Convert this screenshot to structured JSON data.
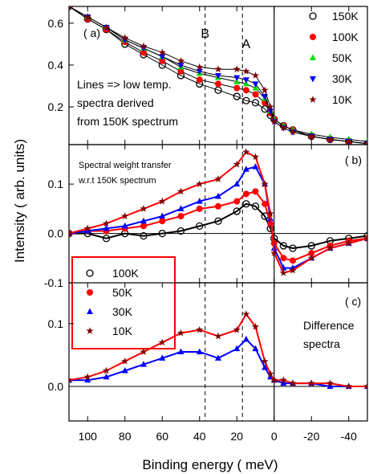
{
  "chart_data": {
    "type": "scatter",
    "xlabel": "Binding energy  ( meV)",
    "ylabel": "Intensity  ( arb. units)",
    "xlim": [
      110,
      -50
    ],
    "xticks": [
      100,
      80,
      60,
      40,
      20,
      0,
      -20,
      -40
    ],
    "reference_lines_x": [
      37,
      17,
      0
    ],
    "panels": [
      {
        "id": "a",
        "panel_label": "( a)",
        "ylim": [
          0.02,
          0.68
        ],
        "yticks": [
          0.2,
          0.4,
          0.6
        ],
        "peak_labels": [
          {
            "text": "B",
            "x": 37,
            "y": 0.53
          },
          {
            "text": "A",
            "x": 15,
            "y": 0.48
          }
        ],
        "annotation_lines": [
          "Lines => low temp.",
          "spectra derived",
          "from 150K spectrum"
        ],
        "legend_position": "top-right",
        "series": [
          {
            "name": "150K",
            "marker": "circle-open",
            "color": "#000000",
            "x": [
              110,
              100,
              90,
              80,
              70,
              60,
              50,
              40,
              30,
              20,
              15,
              10,
              5,
              2,
              0,
              -5,
              -10,
              -20,
              -30,
              -40,
              -50
            ],
            "y": [
              0.68,
              0.62,
              0.57,
              0.5,
              0.45,
              0.4,
              0.35,
              0.31,
              0.28,
              0.25,
              0.23,
              0.22,
              0.19,
              0.16,
              0.14,
              0.11,
              0.09,
              0.06,
              0.045,
              0.035,
              0.025
            ]
          },
          {
            "name": "100K",
            "marker": "circle-filled",
            "color": "#ff0000",
            "x": [
              110,
              100,
              90,
              80,
              70,
              60,
              50,
              40,
              30,
              20,
              15,
              10,
              5,
              2,
              0,
              -5,
              -10,
              -20,
              -30,
              -40,
              -50
            ],
            "y": [
              0.68,
              0.62,
              0.57,
              0.51,
              0.46,
              0.42,
              0.37,
              0.33,
              0.31,
              0.29,
              0.28,
              0.26,
              0.22,
              0.17,
              0.14,
              0.11,
              0.09,
              0.06,
              0.045,
              0.035,
              0.025
            ]
          },
          {
            "name": "50K",
            "marker": "triangle-up",
            "color": "#00dd00",
            "x": [
              110,
              100,
              90,
              80,
              70,
              60,
              50,
              40,
              30,
              20,
              15,
              10,
              5,
              2,
              0,
              -5,
              -10,
              -20,
              -30,
              -40,
              -50
            ],
            "y": [
              0.68,
              0.63,
              0.58,
              0.52,
              0.48,
              0.44,
              0.39,
              0.36,
              0.34,
              0.32,
              0.31,
              0.29,
              0.24,
              0.18,
              0.14,
              0.11,
              0.09,
              0.07,
              0.055,
              0.045,
              0.035
            ]
          },
          {
            "name": "30K",
            "marker": "triangle-down",
            "color": "#0000ff",
            "x": [
              110,
              100,
              90,
              80,
              70,
              60,
              50,
              40,
              30,
              20,
              15,
              10,
              5,
              2,
              0,
              -5,
              -10,
              -20,
              -30,
              -40,
              -50
            ],
            "y": [
              0.68,
              0.63,
              0.58,
              0.52,
              0.48,
              0.44,
              0.4,
              0.37,
              0.35,
              0.34,
              0.33,
              0.31,
              0.25,
              0.18,
              0.13,
              0.1,
              0.08,
              0.06,
              0.045,
              0.035,
              0.025
            ]
          },
          {
            "name": "10K",
            "marker": "star",
            "color": "#800000",
            "x": [
              110,
              100,
              90,
              80,
              70,
              60,
              50,
              40,
              30,
              20,
              15,
              10,
              5,
              2,
              0,
              -5,
              -10,
              -20,
              -30,
              -40,
              -50
            ],
            "y": [
              0.68,
              0.63,
              0.58,
              0.53,
              0.49,
              0.46,
              0.42,
              0.39,
              0.38,
              0.38,
              0.37,
              0.35,
              0.28,
              0.2,
              0.13,
              0.1,
              0.08,
              0.06,
              0.045,
              0.035,
              0.025
            ]
          }
        ]
      },
      {
        "id": "b",
        "panel_label": "( b)",
        "ylim": [
          -0.1,
          0.18
        ],
        "yticks": [
          -0.1,
          0.0,
          0.1
        ],
        "ytick_labels": [
          "-0.1",
          "0.0",
          "0.1"
        ],
        "annotation_lines": [
          "Spectral weight transfer",
          "w.r.t 150K spectrum"
        ],
        "legend_position": "bottom-left",
        "series": [
          {
            "name": "100K",
            "marker": "circle-open",
            "color": "#000000",
            "x": [
              110,
              100,
              90,
              80,
              70,
              60,
              50,
              40,
              30,
              20,
              15,
              10,
              5,
              2,
              0,
              -5,
              -10,
              -20,
              -30,
              -40,
              -50
            ],
            "y": [
              0.0,
              0.0,
              -0.01,
              0.0,
              -0.005,
              0.0,
              0.005,
              0.015,
              0.025,
              0.045,
              0.06,
              0.055,
              0.035,
              0.01,
              -0.01,
              -0.025,
              -0.03,
              -0.025,
              -0.015,
              -0.01,
              -0.005
            ]
          },
          {
            "name": "50K",
            "marker": "circle-filled",
            "color": "#ff0000",
            "x": [
              110,
              100,
              90,
              80,
              70,
              60,
              50,
              40,
              30,
              20,
              15,
              10,
              5,
              2,
              0,
              -5,
              -10,
              -20,
              -30,
              -40,
              -50
            ],
            "y": [
              0.0,
              0.005,
              0.005,
              0.01,
              0.015,
              0.025,
              0.035,
              0.05,
              0.055,
              0.065,
              0.08,
              0.085,
              0.06,
              0.02,
              -0.02,
              -0.05,
              -0.055,
              -0.04,
              -0.025,
              -0.015,
              -0.01
            ]
          },
          {
            "name": "30K",
            "marker": "triangle-up",
            "color": "#0000ff",
            "x": [
              110,
              100,
              90,
              80,
              70,
              60,
              50,
              40,
              30,
              20,
              15,
              10,
              5,
              2,
              0,
              -5,
              -10,
              -20,
              -30,
              -40,
              -50
            ],
            "y": [
              0.0,
              0.005,
              0.01,
              0.015,
              0.025,
              0.035,
              0.05,
              0.065,
              0.075,
              0.1,
              0.13,
              0.135,
              0.1,
              0.03,
              -0.03,
              -0.07,
              -0.07,
              -0.05,
              -0.03,
              -0.02,
              -0.01
            ]
          },
          {
            "name": "10K",
            "marker": "star",
            "color": "#800000",
            "x": [
              110,
              100,
              90,
              80,
              70,
              60,
              50,
              40,
              30,
              20,
              15,
              10,
              5,
              2,
              0,
              -5,
              -10,
              -20,
              -30,
              -40,
              -50
            ],
            "y": [
              0.0,
              0.01,
              0.02,
              0.035,
              0.05,
              0.065,
              0.085,
              0.1,
              0.11,
              0.14,
              0.165,
              0.155,
              0.1,
              0.04,
              -0.04,
              -0.08,
              -0.075,
              -0.05,
              -0.03,
              -0.02,
              -0.01
            ]
          }
        ]
      },
      {
        "id": "c",
        "panel_label": "( c)",
        "ylim": [
          -0.055,
          0.165
        ],
        "yticks": [
          0.0,
          0.1
        ],
        "ytick_labels": [
          "0.0",
          "0.1"
        ],
        "annotation_lines": [
          "Difference",
          "spectra"
        ],
        "series": [
          {
            "name": "30K",
            "marker": "triangle-up",
            "color": "#0000ff",
            "x": [
              110,
              100,
              90,
              80,
              70,
              60,
              50,
              40,
              30,
              20,
              15,
              10,
              5,
              2,
              0,
              -5,
              -10,
              -20,
              -30,
              -40,
              -50
            ],
            "y": [
              0.01,
              0.01,
              0.015,
              0.025,
              0.035,
              0.045,
              0.055,
              0.055,
              0.045,
              0.06,
              0.075,
              0.06,
              0.03,
              0.015,
              0.01,
              0.005,
              0.005,
              0.005,
              0.0,
              0.0,
              0.0
            ]
          },
          {
            "name": "10K",
            "marker": "star",
            "color": "#800000",
            "x": [
              110,
              100,
              90,
              80,
              70,
              60,
              50,
              40,
              30,
              20,
              15,
              10,
              5,
              2,
              0,
              -5,
              -10,
              -20,
              -30,
              -40,
              -50
            ],
            "y": [
              0.01,
              0.015,
              0.025,
              0.04,
              0.055,
              0.07,
              0.085,
              0.09,
              0.08,
              0.09,
              0.115,
              0.095,
              0.04,
              0.02,
              0.01,
              0.01,
              0.005,
              0.005,
              0.005,
              0.0,
              0.0
            ]
          }
        ]
      }
    ]
  }
}
